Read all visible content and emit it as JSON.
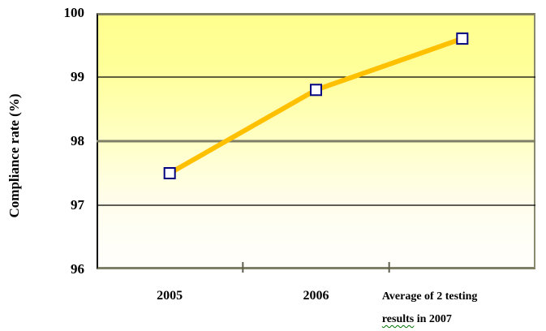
{
  "chart_data": {
    "type": "line",
    "title": "",
    "xlabel": "",
    "ylabel": "Compliance rate (%)",
    "categories": [
      "2005",
      "2006",
      "Average of 2 testing\nresults in 2007"
    ],
    "series": [
      {
        "name": "Compliance rate",
        "values": [
          97.5,
          98.8,
          99.6
        ]
      }
    ],
    "ylim": [
      96,
      100
    ],
    "yticks": [
      96,
      97,
      98,
      99,
      100
    ],
    "gridlines": {
      "minor": [
        97,
        99
      ],
      "major": [
        98
      ]
    },
    "legend_position": "none",
    "marker_shape": "square",
    "plot_background": "yellow fading to white, top to bottom"
  },
  "annotations": {
    "spellcheck_wavy_word": "results"
  },
  "colors": {
    "series_line": "#FFC000",
    "marker_fill": "#FFFFFF",
    "marker_border": "#000080",
    "grid_minor": "#000000",
    "grid_major": "#7f7f66",
    "axis_frame": "#7f7f66",
    "boundary_tick": "#5f5f4e",
    "plot_top": "#FFFF99",
    "plot_bottom": "#FFFFFF",
    "text": "#000000",
    "wavy_underline": "#007000"
  }
}
